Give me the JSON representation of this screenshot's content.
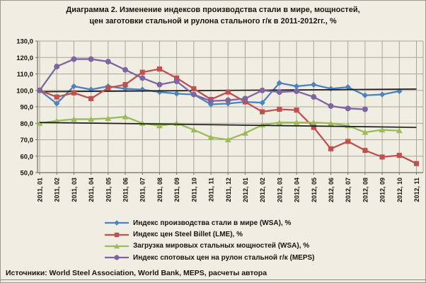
{
  "title": {
    "line1": "Диаграмма 2. Изменение индексов производства стали в мире, мощностей,",
    "line2": "цен заготовки стальной и рулона стального г/к в 2011-2012гг.,  %"
  },
  "source": "Источники: World Steel Association, World Bank, MEPS, расчеты автора",
  "colors": {
    "background": "#f0eee2",
    "gridline": "#a9a59a",
    "axis": "#6f6c64",
    "text": "#15150e",
    "series_blue": "#4f81bd",
    "series_red": "#c0504d",
    "series_green": "#9bbb59",
    "series_purple": "#8064a2",
    "trendline": "#1c1c1c"
  },
  "chart_data": {
    "type": "line",
    "grid": true,
    "legend_position": "bottom",
    "ylim": [
      50,
      130
    ],
    "ytick_step": 10,
    "ytick_labels": [
      "50,0",
      "60,0",
      "70,0",
      "80,0",
      "90,0",
      "100,0",
      "110,0",
      "120,0",
      "130,0"
    ],
    "categories": [
      "2011, 01",
      "2011, 02",
      "2011, 03",
      "2011, 04",
      "2011, 05",
      "2011, 06",
      "2011, 07",
      "2011, 08",
      "2011, 09",
      "2011, 10",
      "2011, 11",
      "2011, 12",
      "2012, 01",
      "2012, 02",
      "2012, 03",
      "2012, 04",
      "2012, 05",
      "2012, 06",
      "2012, 07",
      "2012, 08",
      "2012, 09",
      "2012, 10",
      "2012, 11"
    ],
    "series": [
      {
        "name": "Индекс производства стали в мире (WSA), %",
        "marker": "diamond",
        "color": "#4f81bd",
        "values": [
          100,
          92,
          102.5,
          100.5,
          102.5,
          101,
          100.5,
          99,
          98,
          97.5,
          91.5,
          92,
          93,
          92.5,
          104.5,
          102.5,
          103.5,
          101,
          102,
          97,
          97.5,
          99.5
        ]
      },
      {
        "name": "Индекс цен Steel Billet (LME), %",
        "marker": "square",
        "color": "#c0504d",
        "values": [
          100,
          96,
          98.5,
          95,
          101.5,
          103.5,
          111,
          113,
          107.5,
          101,
          94.5,
          99,
          93,
          87,
          88.5,
          88,
          77.5,
          64.5,
          69,
          63.5,
          59.5,
          60.5,
          55.5
        ]
      },
      {
        "name": "Загрузка мировых стальных мощностей (WSA), %",
        "marker": "triangle",
        "color": "#9bbb59",
        "values": [
          80,
          81.5,
          82.5,
          82.5,
          83,
          84,
          80,
          78.5,
          80,
          76,
          71.5,
          70,
          74,
          79,
          80.5,
          80.5,
          80.5,
          80,
          78.5,
          74.5,
          76,
          75.5
        ]
      },
      {
        "name": "Индекс спотовых цен на рулон стальной г/к (MEPS)",
        "marker": "circle",
        "color": "#8064a2",
        "values": [
          100,
          114.5,
          119,
          119,
          117.5,
          112.5,
          107.5,
          103.5,
          105.5,
          97.5,
          93.5,
          94,
          95,
          100,
          99,
          99.5,
          96,
          90.5,
          89,
          88.5
        ]
      }
    ],
    "trendlines": [
      {
        "series": "Индекс производства стали в мире (WSA), %",
        "after_series": 0,
        "start": 99.2,
        "end": 100.8,
        "color": "#1c1c1c"
      },
      {
        "series": "Загрузка мировых стальных мощностей (WSA), %",
        "after_series": 2,
        "start": 80.5,
        "end": 77.5,
        "color": "#1c1c1c"
      }
    ]
  }
}
